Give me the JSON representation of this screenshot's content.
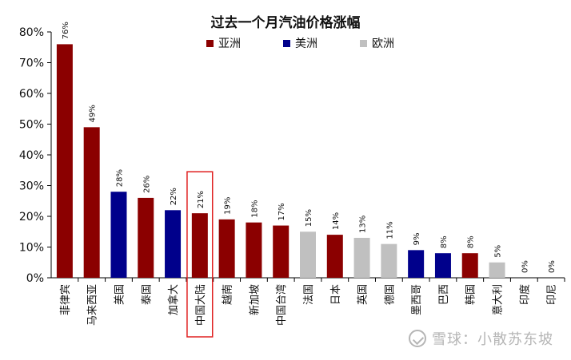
{
  "chart_data": {
    "type": "bar",
    "title": "过去一个月汽油价格涨幅",
    "categories": [
      "菲律宾",
      "马来西亚",
      "美国",
      "泰国",
      "加拿大",
      "中国大陆",
      "越南",
      "新加坡",
      "中国台湾",
      "法国",
      "日本",
      "英国",
      "德国",
      "墨西哥",
      "巴西",
      "韩国",
      "意大利",
      "印度",
      "印尼"
    ],
    "values": [
      76,
      49,
      28,
      26,
      22,
      21,
      19,
      18,
      17,
      15,
      14,
      13,
      11,
      9,
      8,
      8,
      5,
      0,
      0
    ],
    "value_labels": [
      "76%",
      "49%",
      "28%",
      "26%",
      "22%",
      "21%",
      "19%",
      "18%",
      "17%",
      "15%",
      "14%",
      "13%",
      "11%",
      "9%",
      "8%",
      "8%",
      "5%",
      "0%",
      "0%"
    ],
    "region": [
      "亚洲",
      "亚洲",
      "美洲",
      "亚洲",
      "美洲",
      "亚洲",
      "亚洲",
      "亚洲",
      "亚洲",
      "欧洲",
      "亚洲",
      "欧洲",
      "欧洲",
      "美洲",
      "美洲",
      "亚洲",
      "欧洲",
      "亚洲",
      "亚洲"
    ],
    "legend": [
      {
        "label": "亚洲",
        "color": "#8B0000"
      },
      {
        "label": "美洲",
        "color": "#00008B"
      },
      {
        "label": "欧洲",
        "color": "#C0C0C0"
      }
    ],
    "ylim": [
      0,
      80
    ],
    "yticks": [
      0,
      10,
      20,
      30,
      40,
      50,
      60,
      70,
      80
    ],
    "ytick_labels": [
      "0%",
      "10%",
      "20%",
      "30%",
      "40%",
      "50%",
      "60%",
      "70%",
      "80%"
    ],
    "grid": false,
    "legend_position": "top",
    "highlighted_category": "中国大陆",
    "highlight_color": "#E02020"
  },
  "watermark": {
    "text": "雪球：小散苏东坡"
  }
}
